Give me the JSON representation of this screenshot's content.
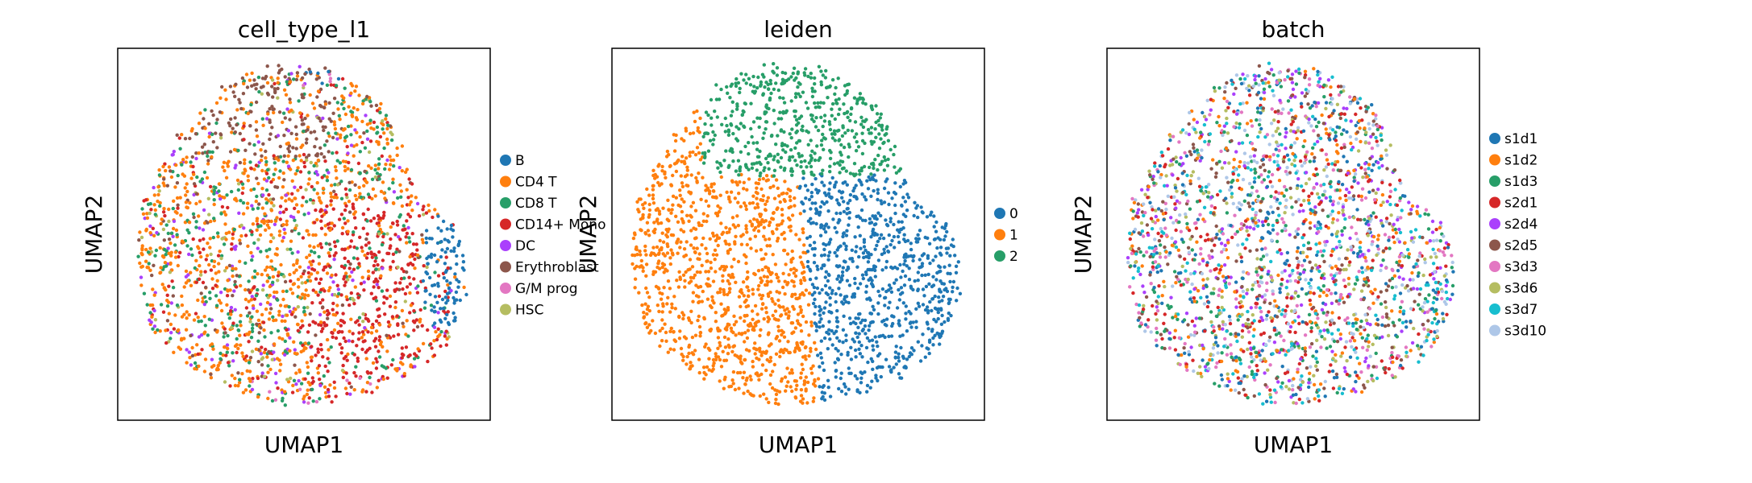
{
  "chart_data": [
    {
      "type": "scatter",
      "title": "cell_type_l1",
      "xlabel": "UMAP1",
      "ylabel": "UMAP2",
      "grid": false,
      "ticks": false,
      "legend_placement": "right-outside",
      "legend": [
        "B",
        "CD4 T",
        "CD8 T",
        "CD14+ Mono",
        "DC",
        "Erythroblast",
        "G/M prog",
        "HSC"
      ],
      "colors": [
        "#1f77b4",
        "#ff7f0e",
        "#279e68",
        "#d62728",
        "#aa40fc",
        "#8c564b",
        "#e377c2",
        "#b5bd61"
      ]
    },
    {
      "type": "scatter",
      "title": "leiden",
      "xlabel": "UMAP1",
      "ylabel": "UMAP2",
      "grid": false,
      "ticks": false,
      "legend_placement": "right-outside",
      "legend": [
        "0",
        "1",
        "2"
      ],
      "colors": [
        "#1f77b4",
        "#ff7f0e",
        "#279e68"
      ]
    },
    {
      "type": "scatter",
      "title": "batch",
      "xlabel": "UMAP1",
      "ylabel": "UMAP2",
      "grid": false,
      "ticks": false,
      "legend_placement": "right-outside",
      "legend": [
        "s1d1",
        "s1d2",
        "s1d3",
        "s2d1",
        "s2d4",
        "s2d5",
        "s3d3",
        "s3d6",
        "s3d7",
        "s3d10"
      ],
      "colors": [
        "#1f77b4",
        "#ff7f0e",
        "#279e68",
        "#d62728",
        "#aa40fc",
        "#8c564b",
        "#e377c2",
        "#b5bd61",
        "#17becf",
        "#aec7e8"
      ]
    }
  ]
}
